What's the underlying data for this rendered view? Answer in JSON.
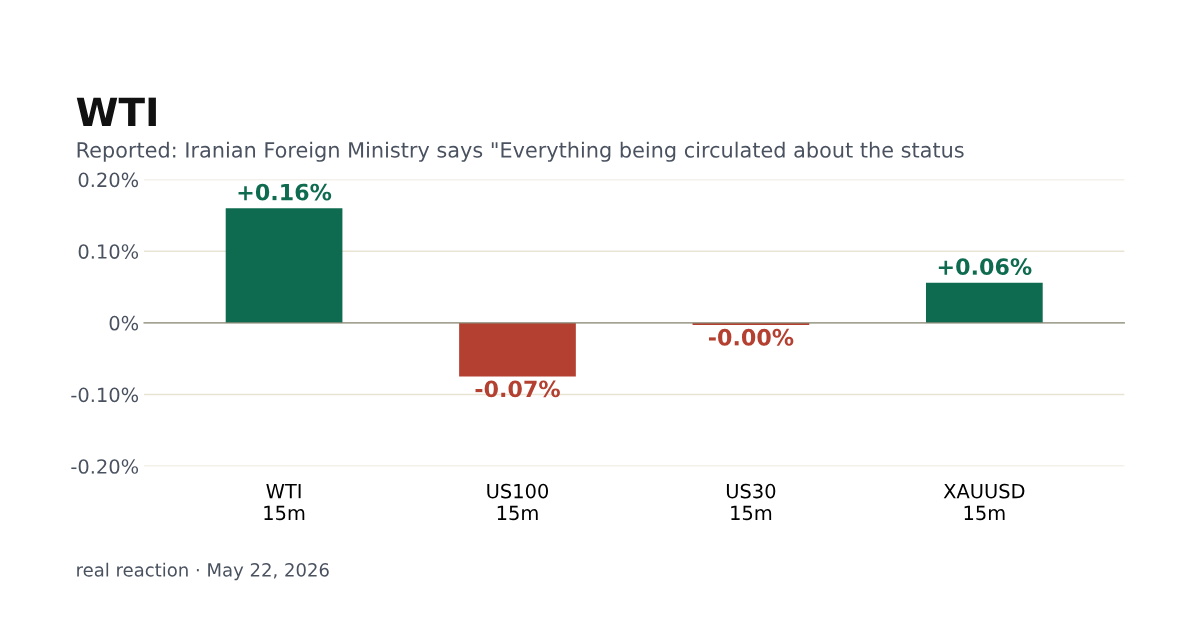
{
  "chart_data": {
    "type": "bar",
    "title": "WTI",
    "subtitle": "Reported: Iranian Foreign Ministry says \"Everything being circulated about the status",
    "categories": [
      "WTI\n15m",
      "US100\n15m",
      "US30\n15m",
      "XAUUSD\n15m"
    ],
    "values": [
      0.16,
      -0.075,
      -0.003,
      0.056
    ],
    "value_labels": [
      "+0.16%",
      "-0.07%",
      "-0.00%",
      "+0.06%"
    ],
    "colors": [
      "#0f6b4f",
      "#b34030",
      "#b34030",
      "#0f6b4f"
    ],
    "ylim": [
      -0.2,
      0.2
    ],
    "yticks": [
      {
        "value": 0.2,
        "label": "0.20%"
      },
      {
        "value": 0.1,
        "label": "0.10%"
      },
      {
        "value": 0,
        "label": "0%"
      },
      {
        "value": -0.1,
        "label": "-0.10%"
      },
      {
        "value": -0.2,
        "label": "-0.20%"
      }
    ],
    "grid": "y",
    "legend": false,
    "annotations": [
      "real reaction · May 22, 2026"
    ]
  }
}
